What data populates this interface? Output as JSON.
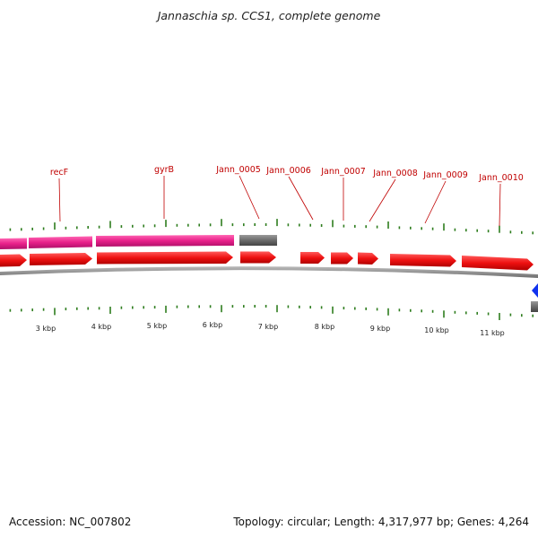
{
  "title": "Jannaschia sp. CCS1, complete genome",
  "footer": {
    "accession": "Accession: NC_007802",
    "summary": "Topology: circular; Length: 4,317,977 bp; Genes: 4,264"
  },
  "gene_labels": [
    "recF",
    "gyrB",
    "Jann_0005",
    "Jann_0006",
    "Jann_0007",
    "Jann_0008",
    "Jann_0009",
    "Jann_0010"
  ],
  "kbp_labels": [
    "3 kbp",
    "4 kbp",
    "5 kbp",
    "6 kbp",
    "7 kbp",
    "8 kbp",
    "9 kbp",
    "10 kbp",
    "11 kbp"
  ],
  "colors": {
    "gene_cds": "#ee1111",
    "gene_outer": "#e8208a",
    "gene_grey": "#6b6b6b",
    "tick": "#2e7d1e",
    "label": "#c00000",
    "backbone": "#888888",
    "blue_marker": "#1133ee"
  }
}
